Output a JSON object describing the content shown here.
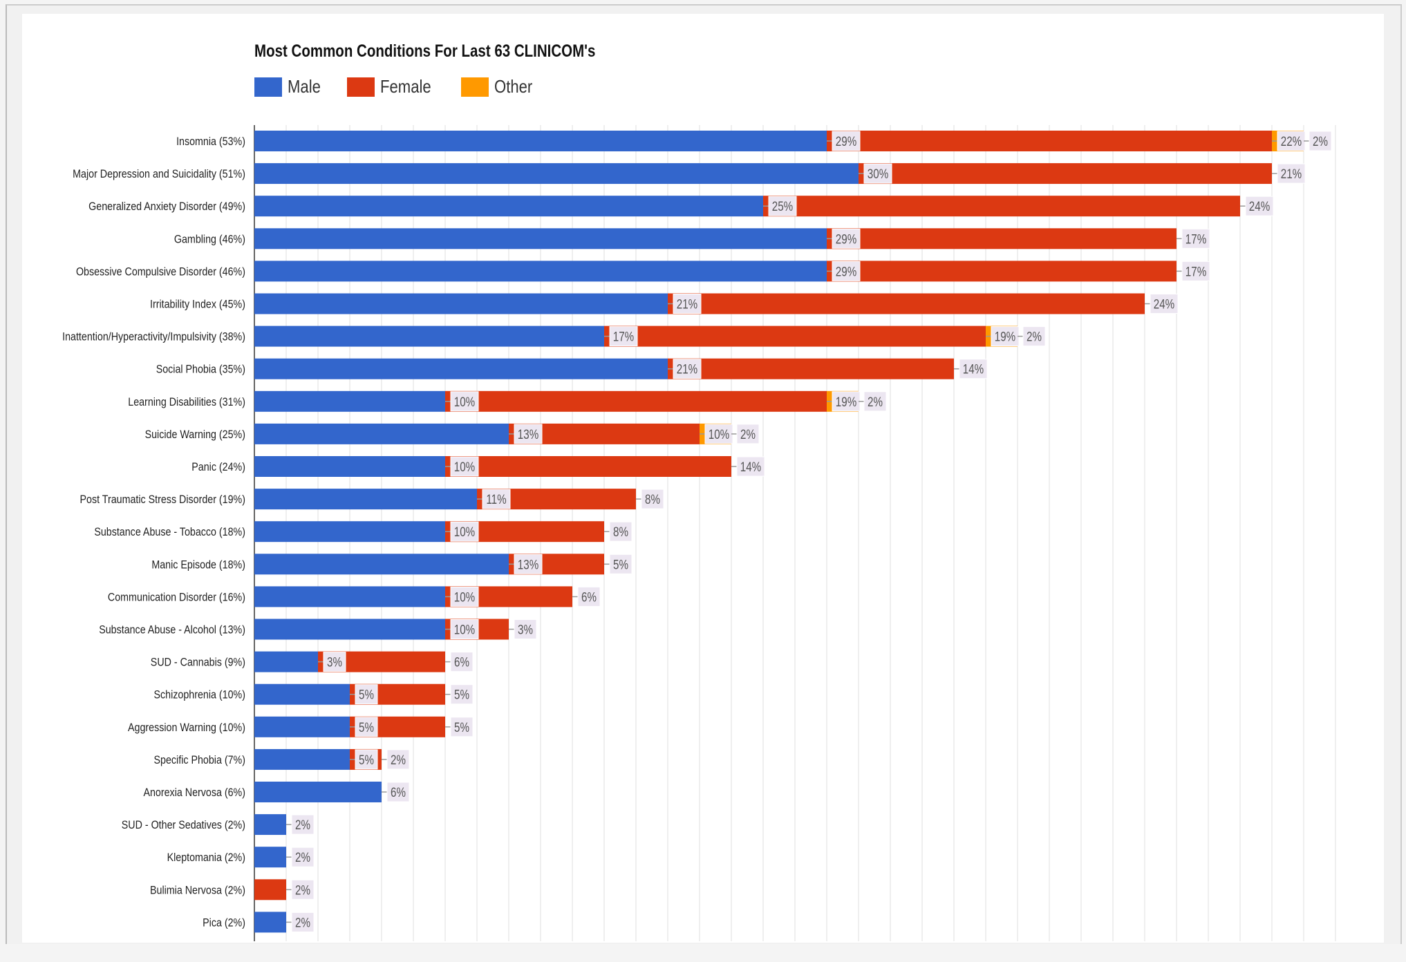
{
  "chart_data": {
    "type": "bar",
    "orientation": "horizontal",
    "stacked": true,
    "title": "Most Common Conditions For Last 63 CLINICOM's",
    "legend": {
      "placement": "top-left"
    },
    "grid": true,
    "series": [
      {
        "name": "Male",
        "color": "#3366cc"
      },
      {
        "name": "Female",
        "color": "#dc3912"
      },
      {
        "name": "Other",
        "color": "#ff9900"
      }
    ],
    "rows": [
      {
        "category": "Insomnia (53%)",
        "values": [
          29,
          22,
          2
        ]
      },
      {
        "category": "Major Depression and Suicidality (51%)",
        "values": [
          30,
          21,
          0
        ]
      },
      {
        "category": "Generalized Anxiety Disorder (49%)",
        "values": [
          25,
          24,
          0
        ]
      },
      {
        "category": "Gambling (46%)",
        "values": [
          29,
          17,
          0
        ]
      },
      {
        "category": "Obsessive Compulsive Disorder (46%)",
        "values": [
          29,
          17,
          0
        ]
      },
      {
        "category": "Irritability Index (45%)",
        "values": [
          21,
          24,
          0
        ]
      },
      {
        "category": "Inattention/Hyperactivity/Impulsivity (38%)",
        "values": [
          17,
          19,
          2
        ]
      },
      {
        "category": "Social Phobia (35%)",
        "values": [
          21,
          14,
          0
        ]
      },
      {
        "category": "Learning Disabilities (31%)",
        "values": [
          10,
          19,
          2
        ]
      },
      {
        "category": "Suicide Warning (25%)",
        "values": [
          13,
          10,
          2
        ]
      },
      {
        "category": "Panic (24%)",
        "values": [
          10,
          14,
          0
        ]
      },
      {
        "category": "Post Traumatic Stress Disorder (19%)",
        "values": [
          11,
          8,
          0
        ]
      },
      {
        "category": "Substance Abuse - Tobacco (18%)",
        "values": [
          10,
          8,
          0
        ]
      },
      {
        "category": "Manic Episode (18%)",
        "values": [
          13,
          5,
          0
        ]
      },
      {
        "category": "Communication Disorder (16%)",
        "values": [
          10,
          6,
          0
        ]
      },
      {
        "category": "Substance Abuse - Alcohol (13%)",
        "values": [
          10,
          3,
          0
        ]
      },
      {
        "category": "SUD - Cannabis (9%)",
        "values": [
          3,
          6,
          0
        ]
      },
      {
        "category": "Schizophrenia (10%)",
        "values": [
          5,
          5,
          0
        ]
      },
      {
        "category": "Aggression Warning (10%)",
        "values": [
          5,
          5,
          0
        ]
      },
      {
        "category": "Specific Phobia (7%)",
        "values": [
          5,
          2,
          0
        ]
      },
      {
        "category": "Anorexia Nervosa (6%)",
        "values": [
          6,
          0,
          0
        ]
      },
      {
        "category": "SUD - Other Sedatives (2%)",
        "values": [
          2,
          0,
          0
        ]
      },
      {
        "category": "Kleptomania (2%)",
        "values": [
          2,
          0,
          0
        ]
      },
      {
        "category": "Bulimia Nervosa (2%)",
        "values": [
          0,
          2,
          0
        ]
      },
      {
        "category": "Pica (2%)",
        "values": [
          2,
          0,
          0
        ]
      }
    ],
    "value_unit": "%",
    "sample_size": 63
  }
}
